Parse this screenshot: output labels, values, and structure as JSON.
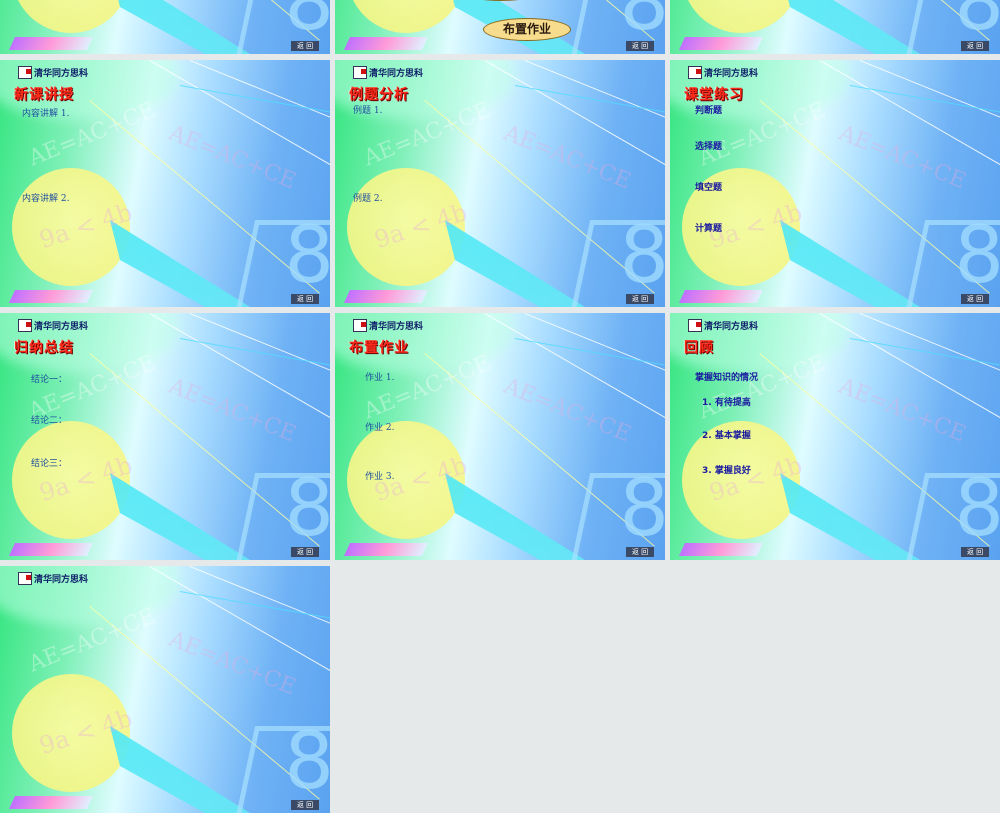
{
  "common": {
    "logo_text": "清华同方思科",
    "back_label": "返 回",
    "watermarks": [
      "AE=AC+CE",
      "AE=AC+CE",
      "9a < 4b",
      "8"
    ]
  },
  "colors": {
    "background": "#e6e9ea",
    "title": "#ff2a1a",
    "content": "#2050a0"
  },
  "slides": [
    {
      "title": "",
      "items": []
    },
    {
      "title": "",
      "items": [],
      "button": "布置作业"
    },
    {
      "title": "",
      "items": []
    },
    {
      "title": "新课讲授",
      "items": [
        "内容讲解 1.",
        "内容讲解 2."
      ]
    },
    {
      "title": "例题分析",
      "items": [
        "例题 1.",
        "例题 2."
      ]
    },
    {
      "title": "课堂练习",
      "items": [
        "判断题",
        "选择题",
        "填空题",
        "计算题"
      ]
    },
    {
      "title": "归纳总结",
      "items": [
        "结论一：",
        "结论二：",
        "结论三："
      ]
    },
    {
      "title": "布置作业",
      "items": [
        "作业 1.",
        "作业 2.",
        "作业 3."
      ]
    },
    {
      "title": "回顾",
      "items": [
        "掌握知识的情况",
        "1. 有待提高",
        "2. 基本掌握",
        "3. 掌握良好"
      ]
    },
    {
      "title": "",
      "items": []
    }
  ]
}
